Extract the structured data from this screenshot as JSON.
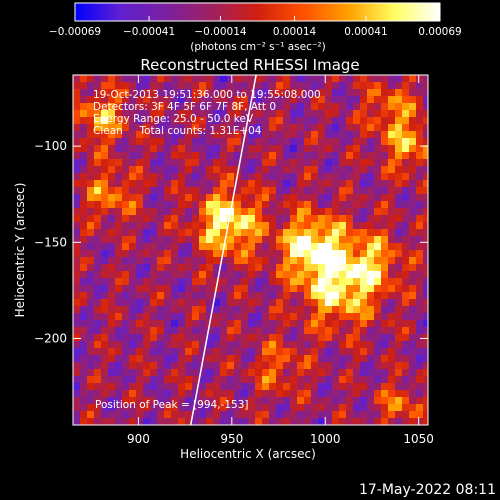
{
  "chart_data": {
    "type": "heatmap",
    "title": "Reconstructed RHESSI Image",
    "xlabel": "Heliocentric X (arcsec)",
    "ylabel": "Heliocentric Y (arcsec)",
    "xlim": [
      865,
      1055
    ],
    "ylim": [
      -245,
      -63
    ],
    "x_ticks": [
      {
        "value": 900,
        "label": "900"
      },
      {
        "value": 950,
        "label": "950"
      },
      {
        "value": 1000,
        "label": "1000"
      },
      {
        "value": 1050,
        "label": "1050"
      }
    ],
    "y_ticks": [
      {
        "value": -100,
        "label": "−100"
      },
      {
        "value": -150,
        "label": "−150"
      },
      {
        "value": -200,
        "label": "−200"
      }
    ],
    "colorbar": {
      "label": "(photons cm⁻² s⁻¹ asec⁻²)",
      "range": [
        -0.00069,
        0.00069
      ],
      "ticks": [
        {
          "value": -0.00069,
          "label": "−0.00069"
        },
        {
          "value": -0.00041,
          "label": "−0.00041"
        },
        {
          "value": -0.00014,
          "label": "−0.00014"
        },
        {
          "value": 0.00014,
          "label": "0.00014"
        },
        {
          "value": 0.00041,
          "label": "0.00041"
        },
        {
          "value": 0.00069,
          "label": "0.00069"
        }
      ],
      "colors": [
        "#0000ff",
        "#6020d0",
        "#7a20a0",
        "#a02060",
        "#d02010",
        "#ff5000",
        "#ffa000",
        "#ffff60",
        "#ffffff"
      ]
    },
    "annotations": [
      "19-Oct-2013 19:51:36.000 to 19:55:08.000",
      "Detectors: 3F 4F 5F 6F 7F 8F, Att 0",
      "Energy Range: 25.0 - 50.0 keV",
      "Clean     Total counts: 1.31E+04"
    ],
    "peak_label": "Position of Peak = [994,-153]",
    "limb_line": {
      "x": [
        928,
        963
      ],
      "y": [
        -245,
        -63
      ]
    },
    "sources": [
      {
        "x": 948,
        "y": -140,
        "amp": 1.0,
        "r": 12
      },
      {
        "x": 993,
        "y": -152,
        "amp": 1.0,
        "r": 12
      },
      {
        "x": 1007,
        "y": -175,
        "amp": 0.8,
        "r": 14
      },
      {
        "x": 1025,
        "y": -160,
        "amp": 0.6,
        "r": 12
      },
      {
        "x": 880,
        "y": -85,
        "amp": 0.65,
        "r": 10
      },
      {
        "x": 885,
        "y": -125,
        "amp": 0.55,
        "r": 10
      },
      {
        "x": 1045,
        "y": -100,
        "amp": 0.6,
        "r": 10
      },
      {
        "x": 1035,
        "y": -80,
        "amp": 0.5,
        "r": 10
      },
      {
        "x": 975,
        "y": -215,
        "amp": 0.45,
        "r": 10
      },
      {
        "x": 1040,
        "y": -235,
        "amp": 0.5,
        "r": 8
      }
    ]
  },
  "footer": {
    "timestamp": "17-May-2022 08:11"
  }
}
